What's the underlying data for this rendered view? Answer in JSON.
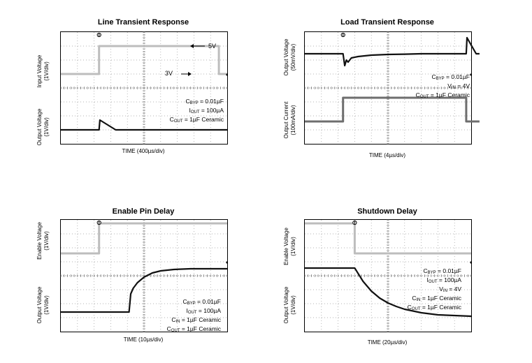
{
  "chart_data": [
    {
      "type": "line",
      "title": "Line Transient Response",
      "xlabel": "TIME (400µs/div)",
      "ylabels": [
        {
          "line1": "Input Voltage",
          "line2": "(1V/div)"
        },
        {
          "line1": "Output Voltage",
          "line2": "(1V/div)"
        }
      ],
      "annotations": [
        "5V",
        "3V"
      ],
      "note_lines": [
        {
          "main": "C",
          "sub": "BYP",
          "rest": " = 0.01µF"
        },
        {
          "main": "I",
          "sub": "OUT",
          "rest": " = 100µA"
        },
        {
          "main": "C",
          "sub": "OUT",
          "rest": " = 1µF Ceramic"
        }
      ],
      "grid": true,
      "x_divisions": 10,
      "y_divisions": 8,
      "series": [
        {
          "color": "#bdbdbd",
          "width": 3,
          "x": [
            0,
            2.3,
            2.3,
            9.5,
            9.5,
            10
          ],
          "y": [
            5.0,
            5.0,
            7.0,
            7.0,
            5.0,
            5.0
          ]
        },
        {
          "color": "#111111",
          "width": 2.2,
          "x": [
            0,
            2.3,
            2.35,
            3.3,
            10
          ],
          "y": [
            1.0,
            1.0,
            1.7,
            1.0,
            1.0
          ]
        }
      ]
    },
    {
      "type": "line",
      "title": "Load Transient Response",
      "xlabel": "TIME (4µs/div)",
      "ylabels": [
        {
          "line1": "Output Voltage",
          "line2": "(50mV/div)"
        },
        {
          "line1": "Output Current",
          "line2": "(100mA/div)"
        }
      ],
      "annotations": [],
      "note_lines": [
        {
          "main": "C",
          "sub": "BYP",
          "rest": " = 0.01µF"
        },
        {
          "main": "V",
          "sub": "IN",
          "rest": " = 4V"
        },
        {
          "main": "C",
          "sub": "OUT",
          "rest": " = 1µF Ceramic"
        }
      ],
      "grid": true,
      "x_divisions": 10,
      "y_divisions": 8,
      "series": [
        {
          "color": "#111111",
          "width": 2.2,
          "x": [
            0,
            2.3,
            2.4,
            2.5,
            2.6,
            2.8,
            3.2,
            4.0,
            5.0,
            6.0,
            7.0,
            9.7,
            9.75,
            10.3,
            10.5
          ],
          "y": [
            6.45,
            6.45,
            5.6,
            6.0,
            5.85,
            6.15,
            6.25,
            6.35,
            6.4,
            6.42,
            6.45,
            6.45,
            7.6,
            6.45,
            6.45
          ]
        },
        {
          "color": "#6e6e6e",
          "width": 3,
          "x": [
            0,
            2.3,
            2.3,
            9.7,
            9.7,
            10.5
          ],
          "y": [
            1.6,
            1.6,
            3.3,
            3.3,
            1.6,
            1.6
          ]
        }
      ]
    },
    {
      "type": "line",
      "title": "Enable Pin Delay",
      "xlabel": "TIME (10µs/div)",
      "ylabels": [
        {
          "line1": "Enable Voltage",
          "line2": "(1V/div)"
        },
        {
          "line1": "Output Voltage",
          "line2": "(1V/div)"
        }
      ],
      "annotations": [],
      "note_lines": [
        {
          "main": "C",
          "sub": "BYP",
          "rest": " = 0.01µF"
        },
        {
          "main": "I",
          "sub": "OUT",
          "rest": " = 100µA"
        },
        {
          "main": "C",
          "sub": "IN",
          "rest": " = 1µF Ceramic"
        },
        {
          "main": "C",
          "sub": "OUT",
          "rest": " = 1µF Ceramic"
        }
      ],
      "grid": true,
      "x_divisions": 10,
      "y_divisions": 8,
      "series": [
        {
          "color": "#bdbdbd",
          "width": 3,
          "x": [
            0,
            2.3,
            2.3,
            10
          ],
          "y": [
            5.6,
            5.6,
            7.75,
            7.75
          ]
        },
        {
          "color": "#111111",
          "width": 2.2,
          "x": [
            0,
            4.1,
            4.2,
            4.35,
            4.6,
            5.0,
            5.5,
            6.0,
            6.8,
            7.8,
            10
          ],
          "y": [
            1.4,
            1.4,
            2.7,
            3.1,
            3.5,
            3.9,
            4.2,
            4.35,
            4.45,
            4.5,
            4.5
          ]
        }
      ]
    },
    {
      "type": "line",
      "title": "Shutdown Delay",
      "xlabel": "TIME (20µs/div)",
      "ylabels": [
        {
          "line1": "Enable Voltage",
          "line2": "(1V/div)"
        },
        {
          "line1": "Output Voltage",
          "line2": "(1V/div)"
        }
      ],
      "annotations": [],
      "note_lines": [
        {
          "main": "C",
          "sub": "BYP",
          "rest": " = 0.01µF"
        },
        {
          "main": "I",
          "sub": "OUT",
          "rest": " = 100µA"
        },
        {
          "main": "V",
          "sub": "IN",
          "rest": " = 4V"
        },
        {
          "main": "C",
          "sub": "IN",
          "rest": " = 1µF Ceramic"
        },
        {
          "main": "C",
          "sub": "OUT",
          "rest": " = 1µF Ceramic"
        }
      ],
      "grid": true,
      "x_divisions": 10,
      "y_divisions": 8,
      "series": [
        {
          "color": "#bdbdbd",
          "width": 3,
          "x": [
            0,
            3.0,
            3.0,
            10
          ],
          "y": [
            7.75,
            7.75,
            5.6,
            5.6
          ]
        },
        {
          "color": "#111111",
          "width": 2.2,
          "x": [
            0,
            3.0,
            3.5,
            4.0,
            4.5,
            5.0,
            5.5,
            6.0,
            7.0,
            8.0,
            9.0,
            10
          ],
          "y": [
            4.55,
            4.55,
            3.6,
            2.9,
            2.4,
            2.05,
            1.8,
            1.6,
            1.35,
            1.2,
            1.15,
            1.1
          ]
        }
      ]
    }
  ]
}
